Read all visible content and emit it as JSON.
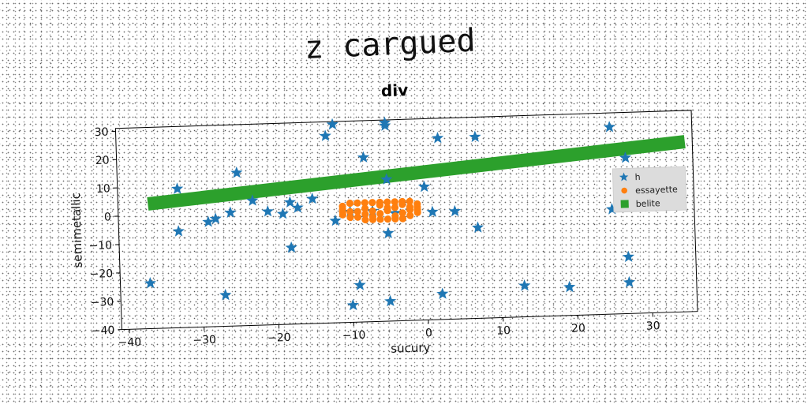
{
  "page_title": "z cargued",
  "chart_data": {
    "type": "scatter",
    "title": "div",
    "xlabel": "sucury",
    "ylabel": "semimetallic",
    "xlim": [
      -41,
      36
    ],
    "ylim": [
      -40,
      31
    ],
    "xticks": [
      -40,
      -30,
      -20,
      -10,
      0,
      10,
      20,
      30
    ],
    "yticks": [
      30,
      20,
      10,
      0,
      -10,
      -20,
      -30,
      -40
    ],
    "grid": false,
    "legend_position": "right",
    "series": [
      {
        "name": "h",
        "marker": "star",
        "color": "#1f77b4",
        "points": [
          [
            -12,
            30
          ],
          [
            -5,
            30
          ],
          [
            -5,
            29
          ],
          [
            -13,
            26
          ],
          [
            25,
            26
          ],
          [
            2,
            24
          ],
          [
            7,
            24
          ],
          [
            -8,
            18
          ],
          [
            27,
            15
          ],
          [
            -25,
            14
          ],
          [
            -33,
            9
          ],
          [
            -5,
            10
          ],
          [
            0,
            7
          ],
          [
            -15,
            4
          ],
          [
            -23,
            4
          ],
          [
            -18,
            3
          ],
          [
            -17,
            1
          ],
          [
            -26,
            0
          ],
          [
            -28,
            -2
          ],
          [
            -29,
            -3
          ],
          [
            -21,
            0
          ],
          [
            -19,
            -1
          ],
          [
            -12,
            -4
          ],
          [
            -10,
            -1
          ],
          [
            -4,
            -2
          ],
          [
            -7,
            -1
          ],
          [
            1,
            -2
          ],
          [
            4,
            -2
          ],
          [
            25,
            -3
          ],
          [
            -33,
            -6
          ],
          [
            7,
            -8
          ],
          [
            -5,
            -9
          ],
          [
            -18,
            -13
          ],
          [
            27,
            -20
          ],
          [
            -37,
            -24
          ],
          [
            -9,
            -27
          ],
          [
            -27,
            -29
          ],
          [
            13,
            -29
          ],
          [
            19,
            -30
          ],
          [
            27,
            -29
          ],
          [
            2,
            -31
          ],
          [
            -5,
            -33
          ],
          [
            -10,
            -34
          ]
        ]
      },
      {
        "name": "essayette",
        "marker": "circle",
        "color": "#ff7f0e",
        "points": [
          [
            -10,
            2
          ],
          [
            -9,
            2
          ],
          [
            -8,
            2
          ],
          [
            -7,
            2
          ],
          [
            -6,
            2
          ],
          [
            -5,
            2
          ],
          [
            -4,
            2
          ],
          [
            -3,
            2
          ],
          [
            -2,
            2
          ],
          [
            -1,
            1
          ],
          [
            -1,
            0
          ],
          [
            -1,
            -1
          ],
          [
            -1,
            -2
          ],
          [
            -2,
            -3
          ],
          [
            -3,
            -4
          ],
          [
            -4,
            -4
          ],
          [
            -5,
            -4
          ],
          [
            -6,
            -4
          ],
          [
            -7,
            -4
          ],
          [
            -8,
            -4
          ],
          [
            -9,
            -3
          ],
          [
            -10,
            -3
          ],
          [
            -11,
            -2
          ],
          [
            -11,
            -1
          ],
          [
            -11,
            0
          ],
          [
            -11,
            1
          ],
          [
            -8,
            0
          ],
          [
            -7,
            -1
          ],
          [
            -6,
            -2
          ],
          [
            -5,
            -1
          ],
          [
            -4,
            0
          ],
          [
            -3,
            1
          ],
          [
            -2,
            -1
          ],
          [
            -3,
            -2
          ],
          [
            -6,
            1
          ],
          [
            -9,
            -1
          ],
          [
            -7,
            -3
          ],
          [
            -4,
            -3
          ],
          [
            -2,
            0
          ],
          [
            -8,
            -2
          ],
          [
            -5,
            0
          ],
          [
            -10,
            -1
          ]
        ]
      },
      {
        "name": "belite",
        "marker": "square",
        "color": "#2ca02c",
        "line": {
          "x1": -37,
          "y1": 4,
          "x2": 35,
          "y2": 20
        }
      }
    ]
  }
}
